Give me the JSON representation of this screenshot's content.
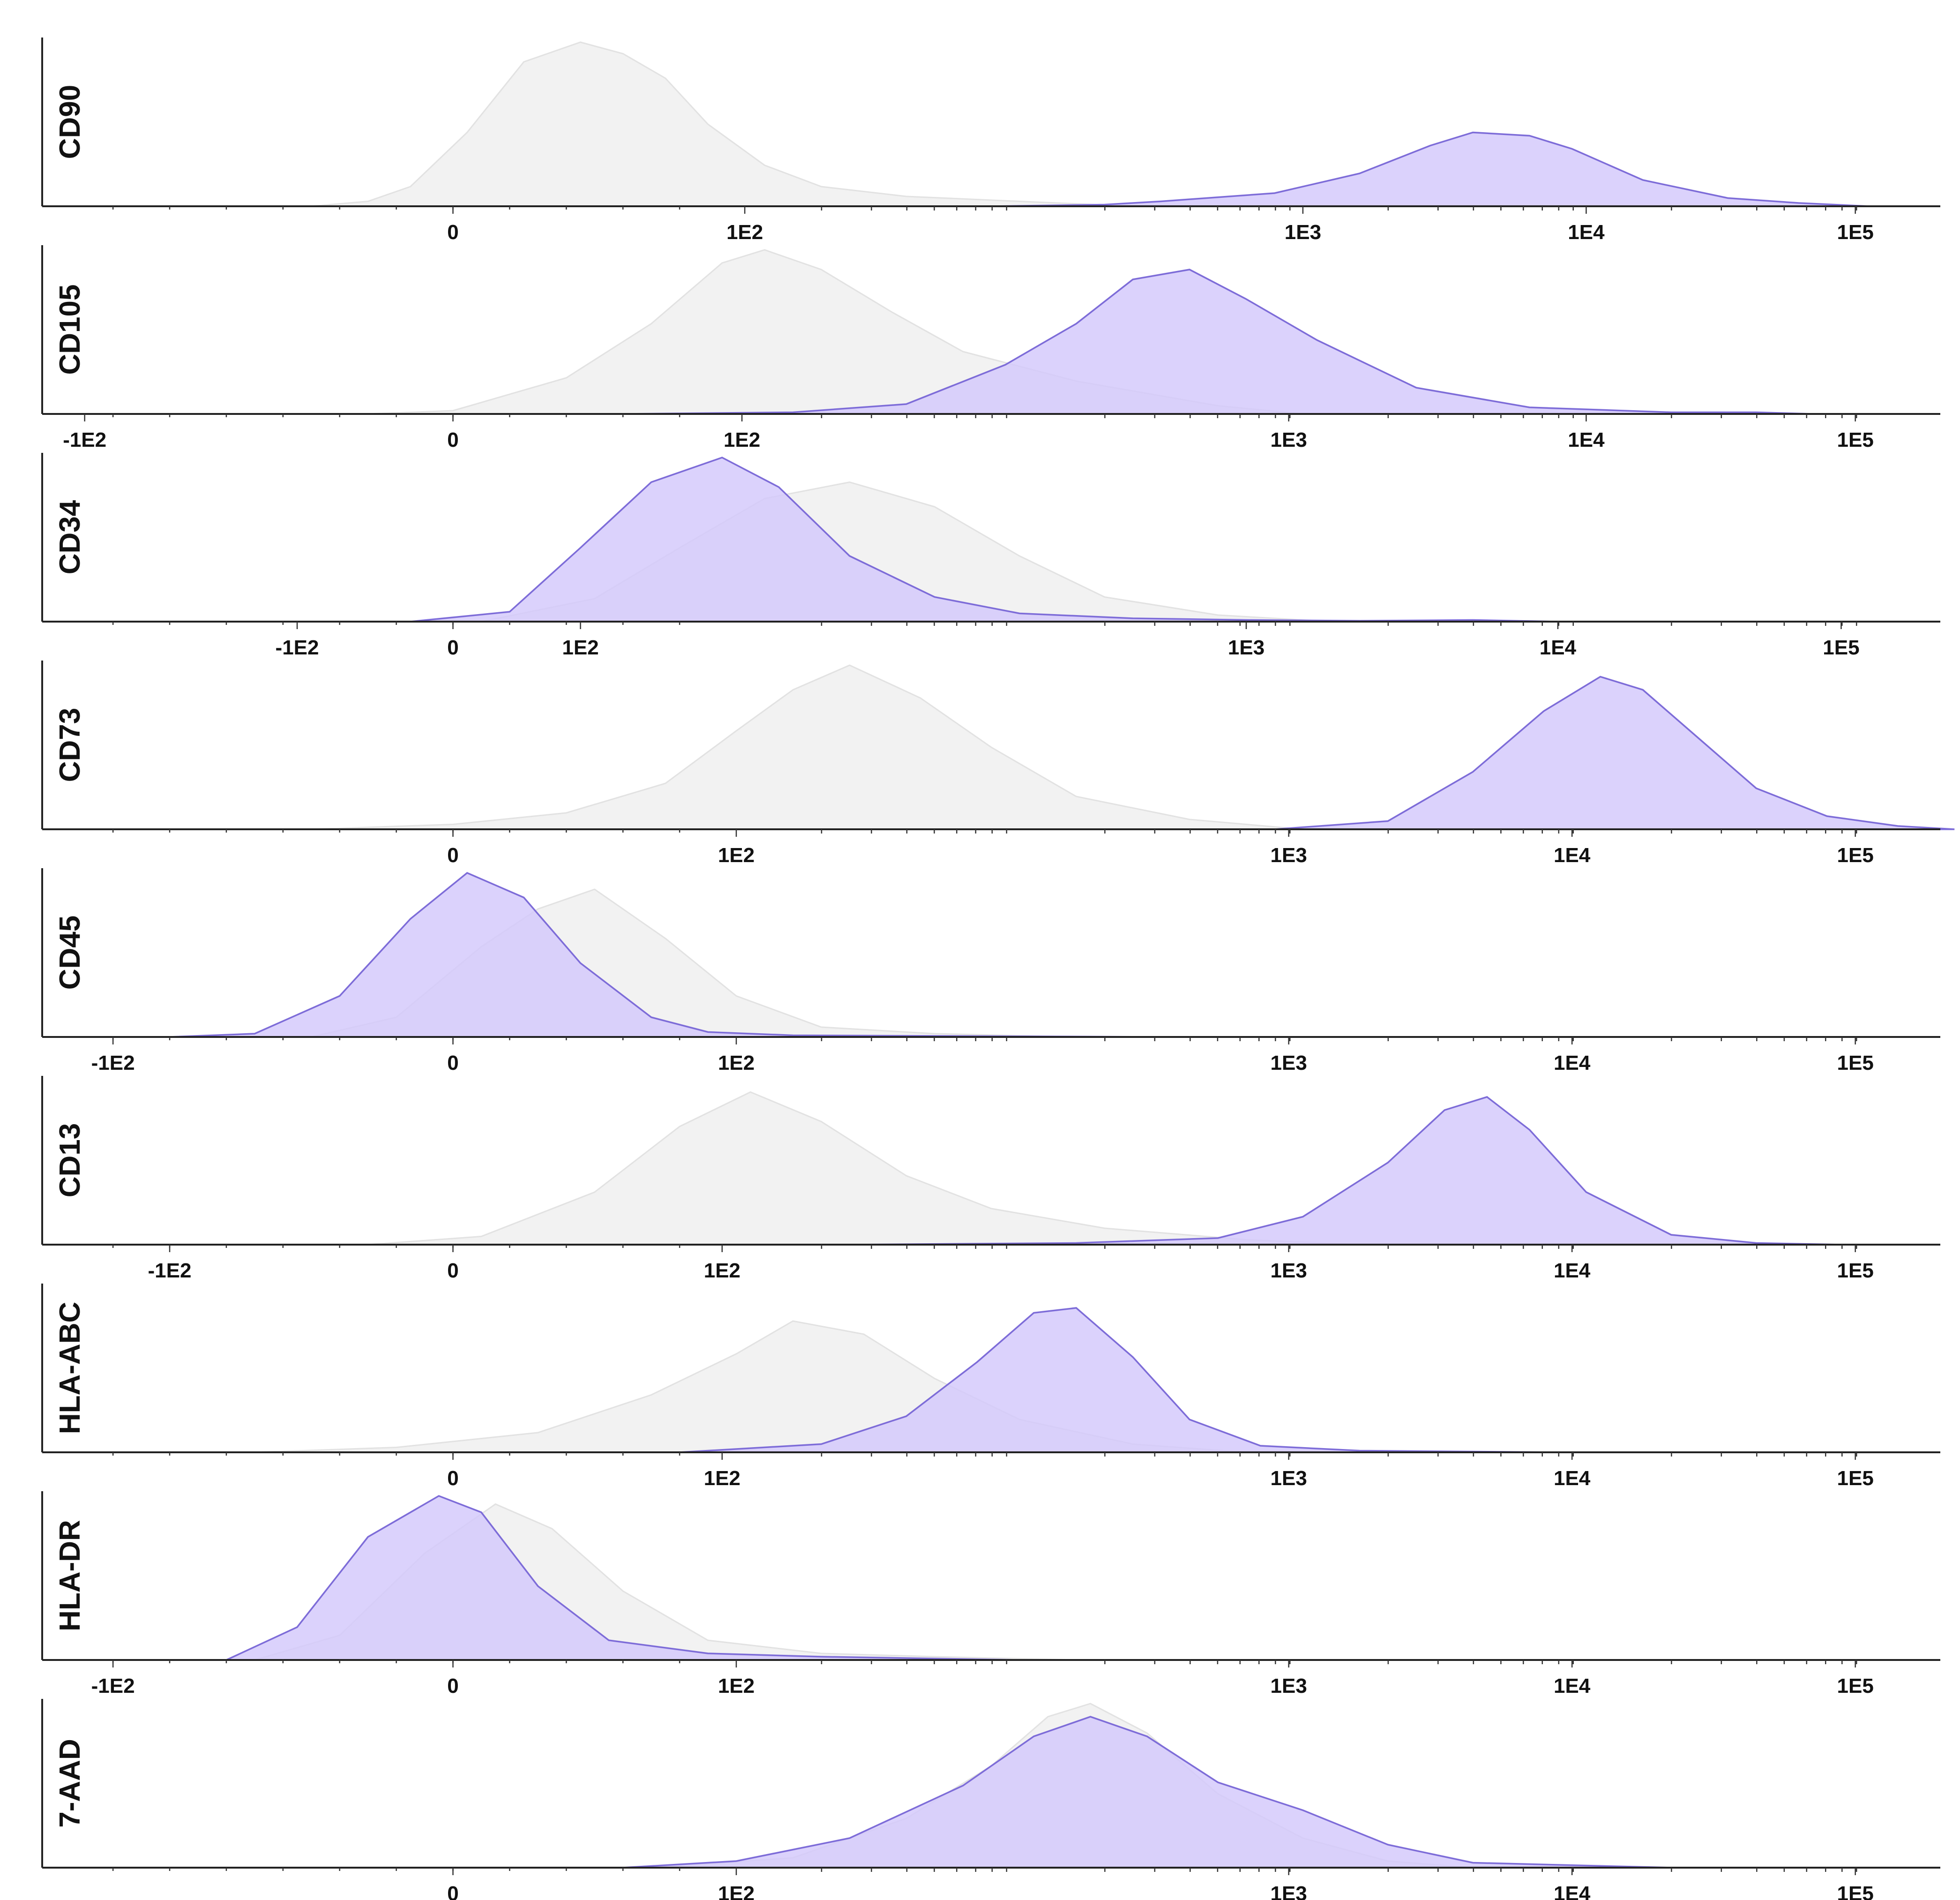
{
  "chart_data": {
    "type": "area",
    "title": "",
    "xlabel": "",
    "ylabel": "",
    "x_scale": "biexponential (log above 1E2)",
    "legend": "none",
    "grid": false,
    "colors": {
      "isotype": "#f1f1f1",
      "isotype_line": "#e2e2e2",
      "marker": "#d3c8fb",
      "marker_line": "#7d6cd8"
    },
    "panels": [
      {
        "marker": "CD90",
        "tick_labels": [
          "0",
          "1E2",
          "1E3",
          "1E4",
          "1E5"
        ],
        "tick_positions": [
          0,
          1.03,
          3.0,
          4.0,
          4.95
        ],
        "isotype": {
          "x": [
            -0.5,
            -0.3,
            -0.15,
            0.05,
            0.25,
            0.45,
            0.6,
            0.75,
            0.9,
            1.1,
            1.3,
            1.6,
            2.0,
            2.4
          ],
          "y": [
            0,
            0.03,
            0.12,
            0.45,
            0.88,
            1.0,
            0.93,
            0.78,
            0.5,
            0.25,
            0.12,
            0.06,
            0.03,
            0
          ]
        },
        "stained": {
          "x": [
            1.9,
            2.3,
            2.5,
            2.9,
            3.2,
            3.45,
            3.6,
            3.8,
            3.95,
            4.2,
            4.5,
            4.75,
            5.0
          ],
          "y": [
            0,
            0.01,
            0.03,
            0.08,
            0.2,
            0.37,
            0.45,
            0.43,
            0.35,
            0.16,
            0.05,
            0.02,
            0
          ]
        }
      },
      {
        "marker": "CD105",
        "tick_labels": [
          "-1E2",
          "0",
          "1E2",
          "1E3",
          "1E4",
          "1E5"
        ],
        "tick_positions": [
          -1.3,
          0,
          1.02,
          2.95,
          4.0,
          4.95
        ],
        "isotype": {
          "x": [
            -0.3,
            0.0,
            0.4,
            0.7,
            0.95,
            1.1,
            1.3,
            1.55,
            1.8,
            2.2,
            2.7,
            3.0
          ],
          "y": [
            0,
            0.02,
            0.22,
            0.55,
            0.92,
            1.0,
            0.88,
            0.62,
            0.38,
            0.2,
            0.05,
            0
          ]
        },
        "stained": {
          "x": [
            0.6,
            1.2,
            1.6,
            1.95,
            2.2,
            2.4,
            2.6,
            2.8,
            3.05,
            3.4,
            3.8,
            4.3,
            4.6,
            4.8
          ],
          "y": [
            0,
            0.01,
            0.06,
            0.3,
            0.55,
            0.82,
            0.88,
            0.7,
            0.45,
            0.16,
            0.04,
            0.01,
            0.01,
            0
          ]
        }
      },
      {
        "marker": "CD34",
        "tick_labels": [
          "-1E2",
          "0",
          "1E2",
          "1E3",
          "1E4",
          "1E5"
        ],
        "tick_positions": [
          -0.55,
          0,
          0.45,
          2.8,
          3.9,
          4.9
        ],
        "isotype": {
          "x": [
            0.1,
            0.5,
            0.8,
            1.1,
            1.4,
            1.7,
            2.0,
            2.3,
            2.7,
            3.1
          ],
          "y": [
            0,
            0.14,
            0.45,
            0.75,
            0.85,
            0.7,
            0.4,
            0.15,
            0.04,
            0
          ]
        },
        "stained": {
          "x": [
            -0.15,
            0.2,
            0.45,
            0.7,
            0.95,
            1.15,
            1.4,
            1.7,
            2.0,
            2.4,
            2.8,
            3.2,
            3.6,
            3.9
          ],
          "y": [
            0,
            0.06,
            0.45,
            0.85,
            1.0,
            0.82,
            0.4,
            0.15,
            0.05,
            0.02,
            0.01,
            0.005,
            0.01,
            0
          ]
        }
      },
      {
        "marker": "CD73",
        "tick_labels": [
          "0",
          "1E2",
          "1E3",
          "1E4",
          "1E5"
        ],
        "tick_positions": [
          0,
          1.0,
          2.95,
          3.95,
          4.95
        ],
        "isotype": {
          "x": [
            -0.5,
            0.0,
            0.4,
            0.75,
            1.0,
            1.2,
            1.4,
            1.65,
            1.9,
            2.2,
            2.6,
            3.0
          ],
          "y": [
            0,
            0.03,
            0.1,
            0.28,
            0.6,
            0.85,
            1.0,
            0.8,
            0.5,
            0.2,
            0.06,
            0
          ]
        },
        "stained": {
          "x": [
            2.9,
            3.3,
            3.6,
            3.85,
            4.05,
            4.2,
            4.4,
            4.6,
            4.85,
            5.1,
            5.3
          ],
          "y": [
            0,
            0.05,
            0.35,
            0.72,
            0.93,
            0.85,
            0.55,
            0.25,
            0.08,
            0.02,
            0
          ]
        }
      },
      {
        "marker": "CD45",
        "tick_labels": [
          "-1E2",
          "0",
          "1E2",
          "1E3",
          "1E4",
          "1E5"
        ],
        "tick_positions": [
          -1.2,
          0,
          1.0,
          2.95,
          3.95,
          4.95
        ],
        "isotype": {
          "x": [
            -0.5,
            -0.2,
            0.1,
            0.3,
            0.5,
            0.75,
            1.0,
            1.3,
            1.7,
            2.2
          ],
          "y": [
            0,
            0.12,
            0.55,
            0.78,
            0.9,
            0.6,
            0.25,
            0.06,
            0.02,
            0
          ]
        },
        "stained": {
          "x": [
            -1.0,
            -0.7,
            -0.4,
            -0.15,
            0.05,
            0.25,
            0.45,
            0.7,
            0.9,
            1.2,
            2.5
          ],
          "y": [
            0,
            0.02,
            0.25,
            0.72,
            1.0,
            0.85,
            0.45,
            0.12,
            0.03,
            0.01,
            0
          ]
        }
      },
      {
        "marker": "CD13",
        "tick_labels": [
          "-1E2",
          "0",
          "1E2",
          "1E3",
          "1E4",
          "1E5"
        ],
        "tick_positions": [
          -1.0,
          0,
          0.95,
          2.95,
          3.95,
          4.95
        ],
        "isotype": {
          "x": [
            -0.3,
            0.1,
            0.5,
            0.8,
            1.05,
            1.3,
            1.6,
            1.9,
            2.3,
            2.8,
            3.2
          ],
          "y": [
            0,
            0.05,
            0.32,
            0.72,
            0.93,
            0.75,
            0.42,
            0.22,
            0.1,
            0.03,
            0
          ]
        },
        "stained": {
          "x": [
            1.4,
            2.2,
            2.7,
            3.0,
            3.3,
            3.5,
            3.65,
            3.8,
            4.0,
            4.3,
            4.6,
            4.9
          ],
          "y": [
            0,
            0.01,
            0.04,
            0.17,
            0.5,
            0.82,
            0.9,
            0.7,
            0.32,
            0.06,
            0.01,
            0
          ]
        }
      },
      {
        "marker": "HLA-ABC",
        "tick_labels": [
          "0",
          "1E2",
          "1E3",
          "1E4",
          "1E5"
        ],
        "tick_positions": [
          0,
          0.95,
          2.95,
          3.95,
          4.95
        ],
        "isotype": {
          "x": [
            -0.7,
            -0.2,
            0.3,
            0.7,
            1.0,
            1.2,
            1.45,
            1.7,
            2.0,
            2.4,
            2.8
          ],
          "y": [
            0,
            0.03,
            0.12,
            0.35,
            0.6,
            0.8,
            0.72,
            0.45,
            0.2,
            0.05,
            0
          ]
        },
        "stained": {
          "x": [
            0.8,
            1.3,
            1.6,
            1.85,
            2.05,
            2.2,
            2.4,
            2.6,
            2.85,
            3.2,
            3.9
          ],
          "y": [
            0,
            0.05,
            0.22,
            0.55,
            0.85,
            0.88,
            0.58,
            0.2,
            0.04,
            0.01,
            0
          ]
        }
      },
      {
        "marker": "HLA-DR",
        "tick_labels": [
          "-1E2",
          "0",
          "1E2",
          "1E3",
          "1E4",
          "1E5"
        ],
        "tick_positions": [
          -1.2,
          0,
          1.0,
          2.95,
          3.95,
          4.95
        ],
        "isotype": {
          "x": [
            -0.7,
            -0.4,
            -0.1,
            0.15,
            0.35,
            0.6,
            0.9,
            1.3,
            1.7,
            2.2
          ],
          "y": [
            0,
            0.15,
            0.65,
            0.95,
            0.8,
            0.42,
            0.12,
            0.04,
            0.02,
            0
          ]
        },
        "stained": {
          "x": [
            -0.8,
            -0.55,
            -0.3,
            -0.05,
            0.1,
            0.3,
            0.55,
            0.9,
            1.3,
            2.0
          ],
          "y": [
            0,
            0.2,
            0.75,
            1.0,
            0.9,
            0.45,
            0.12,
            0.04,
            0.02,
            0
          ]
        }
      },
      {
        "marker": "7-AAD",
        "tick_labels": [
          "0",
          "1E2",
          "1E3",
          "1E4",
          "1E5"
        ],
        "tick_positions": [
          0,
          1.0,
          2.95,
          3.95,
          4.95
        ],
        "isotype": {
          "x": [
            0.7,
            1.2,
            1.6,
            1.9,
            2.1,
            2.25,
            2.45,
            2.7,
            3.0,
            3.3,
            3.6
          ],
          "y": [
            0,
            0.06,
            0.3,
            0.62,
            0.92,
            1.0,
            0.82,
            0.45,
            0.18,
            0.04,
            0
          ]
        },
        "stained": {
          "x": [
            0.6,
            1.0,
            1.4,
            1.8,
            2.05,
            2.25,
            2.45,
            2.7,
            3.0,
            3.3,
            3.6,
            4.3
          ],
          "y": [
            0,
            0.04,
            0.18,
            0.5,
            0.8,
            0.92,
            0.8,
            0.52,
            0.35,
            0.14,
            0.03,
            0
          ]
        }
      }
    ]
  }
}
